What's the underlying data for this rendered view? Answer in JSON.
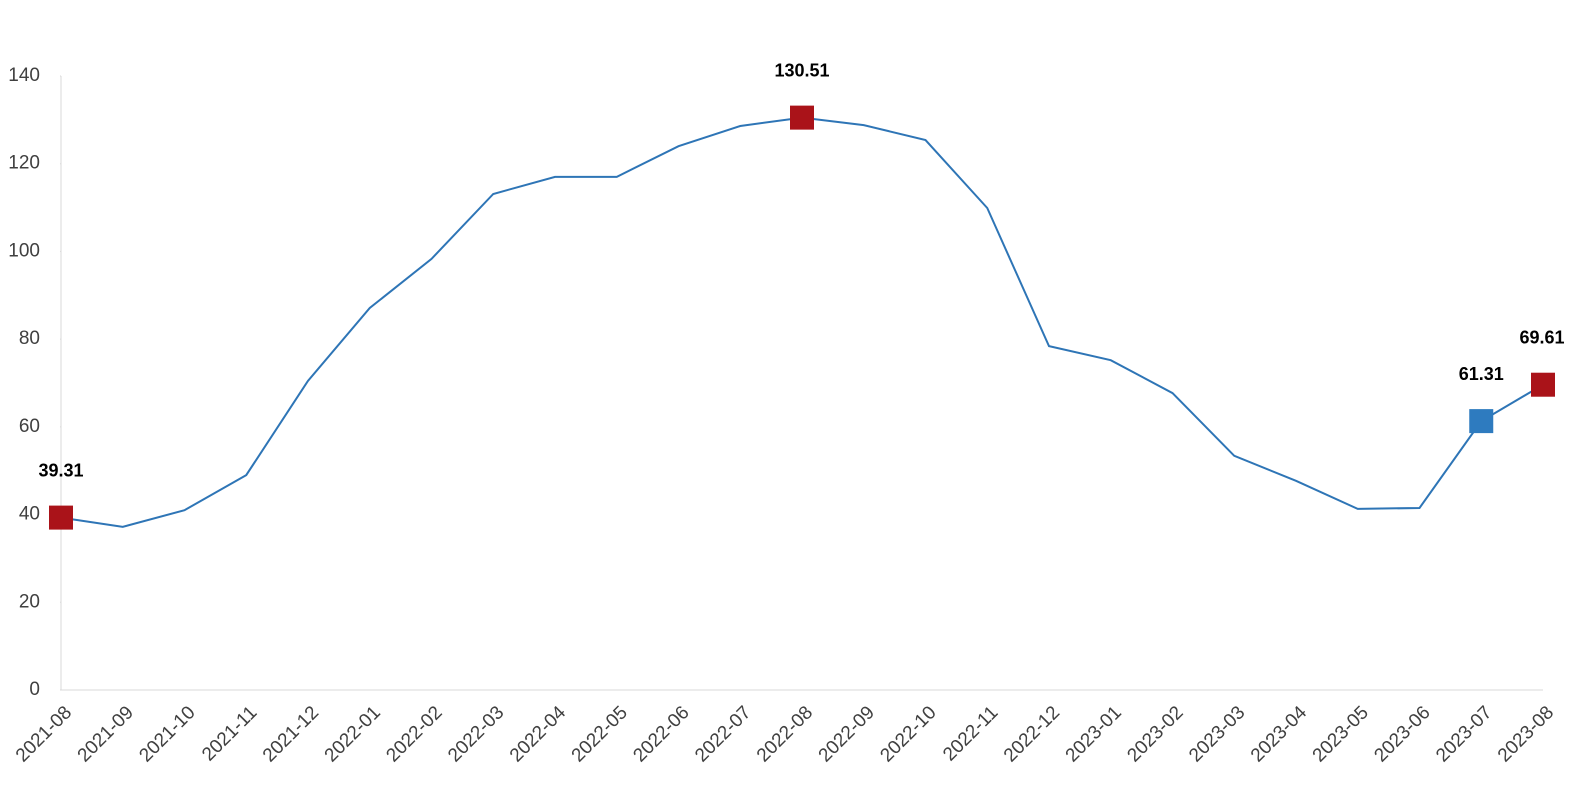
{
  "chart_data": {
    "type": "line",
    "categories": [
      "2021-08",
      "2021-09",
      "2021-10",
      "2021-11",
      "2021-12",
      "2022-01",
      "2022-02",
      "2022-03",
      "2022-04",
      "2022-05",
      "2022-06",
      "2022-07",
      "2022-08",
      "2022-09",
      "2022-10",
      "2022-11",
      "2022-12",
      "2023-01",
      "2023-02",
      "2023-03",
      "2023-04",
      "2023-05",
      "2023-06",
      "2023-07",
      "2023-08"
    ],
    "series": [
      {
        "color": "#2e75b6",
        "values": [
          39.31,
          37.2,
          41.0,
          49.0,
          70.5,
          87.1,
          98.3,
          113.1,
          117.0,
          117.0,
          124.0,
          128.6,
          130.51,
          128.8,
          125.4,
          109.9,
          78.4,
          75.2,
          67.7,
          53.4,
          47.7,
          41.3,
          41.5,
          61.31,
          69.61
        ],
        "markers": [
          "#aa1319",
          null,
          null,
          null,
          null,
          null,
          null,
          null,
          null,
          null,
          null,
          null,
          "#aa1319",
          null,
          null,
          null,
          null,
          null,
          null,
          null,
          null,
          null,
          null,
          "#2e7bbf",
          "#aa1319"
        ]
      }
    ],
    "ylim": [
      0,
      140
    ],
    "yticks": [
      0,
      20,
      40,
      60,
      80,
      100,
      120,
      140
    ],
    "grid": false
  }
}
